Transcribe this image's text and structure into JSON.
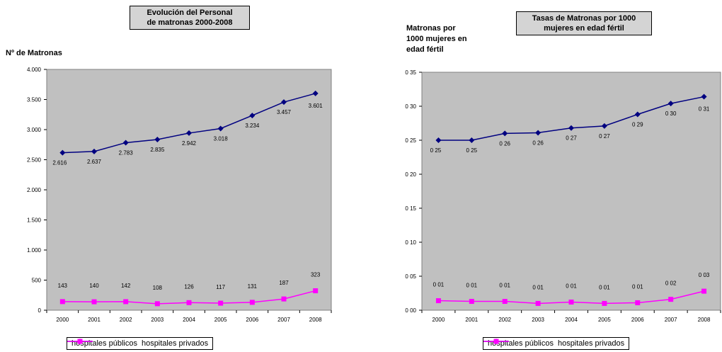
{
  "chart_data": [
    {
      "type": "line",
      "title": "Evolución del Personal\nde matronas 2000-2008",
      "ylabel": "Nº de Matronas",
      "xlabel": "",
      "categories": [
        "2000",
        "2001",
        "2002",
        "2003",
        "2004",
        "2005",
        "2006",
        "2007",
        "2008"
      ],
      "ylim": [
        0,
        4000
      ],
      "yticks": [
        0,
        500,
        1000,
        1500,
        2000,
        2500,
        3000,
        3500,
        4000
      ],
      "ytick_labels": [
        "0",
        "500",
        "1.000",
        "1.500",
        "2.000",
        "2.500",
        "3.000",
        "3.500",
        "4.000"
      ],
      "grid": false,
      "legend_position": "bottom",
      "series": [
        {
          "name": "hospitales públicos",
          "color": "#000080",
          "marker": "diamond",
          "values": [
            2616,
            2637,
            2783,
            2835,
            2942,
            3018,
            3234,
            3457,
            3601
          ],
          "labels": [
            "2.616",
            "2.637",
            "2.783",
            "2.835",
            "2.942",
            "3.018",
            "3.234",
            "3.457",
            "3.601"
          ]
        },
        {
          "name": "hospitales privados",
          "color": "#ff00ff",
          "marker": "square",
          "values": [
            143,
            140,
            142,
            108,
            126,
            117,
            131,
            187,
            323
          ],
          "labels": [
            "143",
            "140",
            "142",
            "108",
            "126",
            "117",
            "131",
            "187",
            "323"
          ]
        }
      ]
    },
    {
      "type": "line",
      "title": "Tasas de Matronas por 1000\nmujeres en edad fértil",
      "ylabel": "Matronas por\n1000 mujeres en\nedad fértil",
      "xlabel": "",
      "categories": [
        "2000",
        "2001",
        "2002",
        "2003",
        "2004",
        "2005",
        "2006",
        "2007",
        "2008"
      ],
      "ylim": [
        0,
        0.35
      ],
      "yticks": [
        0,
        0.05,
        0.1,
        0.15,
        0.2,
        0.25,
        0.3,
        0.35
      ],
      "ytick_labels": [
        "0 00",
        "0 05",
        "0 10",
        "0 15",
        "0 20",
        "0 25",
        "0 30",
        "0 35"
      ],
      "grid": false,
      "legend_position": "bottom",
      "series": [
        {
          "name": "hospitales públicos",
          "color": "#000080",
          "marker": "diamond",
          "values": [
            0.25,
            0.25,
            0.26,
            0.261,
            0.268,
            0.271,
            0.288,
            0.304,
            0.314
          ],
          "labels": [
            "0 25",
            "0 25",
            "0 26",
            "0 26",
            "0 27",
            "0 27",
            "0 29",
            "0 30",
            "0 31"
          ]
        },
        {
          "name": "hospitales privados",
          "color": "#ff00ff",
          "marker": "square",
          "values": [
            0.014,
            0.013,
            0.013,
            0.01,
            0.012,
            0.01,
            0.011,
            0.016,
            0.028
          ],
          "labels": [
            "0 01",
            "0 01",
            "0 01",
            "0 01",
            "0 01",
            "0 01",
            "0 01",
            "0 02",
            "0 03"
          ]
        }
      ]
    }
  ]
}
